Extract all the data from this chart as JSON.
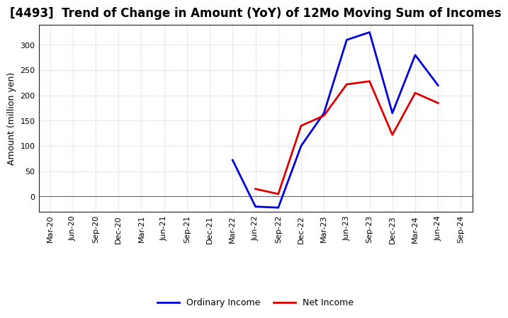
{
  "title": "[4493]  Trend of Change in Amount (YoY) of 12Mo Moving Sum of Incomes",
  "ylabel": "Amount (million yen)",
  "x_labels": [
    "Mar-20",
    "Jun-20",
    "Sep-20",
    "Dec-20",
    "Mar-21",
    "Jun-21",
    "Sep-21",
    "Dec-21",
    "Mar-22",
    "Jun-22",
    "Sep-22",
    "Dec-22",
    "Mar-23",
    "Jun-23",
    "Sep-23",
    "Dec-23",
    "Mar-24",
    "Jun-24",
    "Sep-24"
  ],
  "ordinary_x_idx": [
    8,
    9,
    10,
    11,
    12,
    13,
    14,
    15,
    16,
    17
  ],
  "ordinary_y": [
    72,
    -20,
    -22,
    100,
    165,
    310,
    325,
    165,
    280,
    220
  ],
  "net_x_idx": [
    9,
    10,
    11,
    12,
    13,
    14,
    15,
    16,
    17
  ],
  "net_y": [
    15,
    5,
    140,
    160,
    222,
    228,
    122,
    205,
    185
  ],
  "ordinary_color": "#0000dd",
  "net_color": "#dd0000",
  "background_color": "#ffffff",
  "grid_color": "#bbbbbb",
  "ylim": [
    -30,
    340
  ],
  "yticks": [
    0,
    50,
    100,
    150,
    200,
    250,
    300
  ],
  "legend_labels": [
    "Ordinary Income",
    "Net Income"
  ],
  "title_fontsize": 12,
  "ylabel_fontsize": 9,
  "tick_fontsize": 8,
  "legend_fontsize": 9
}
